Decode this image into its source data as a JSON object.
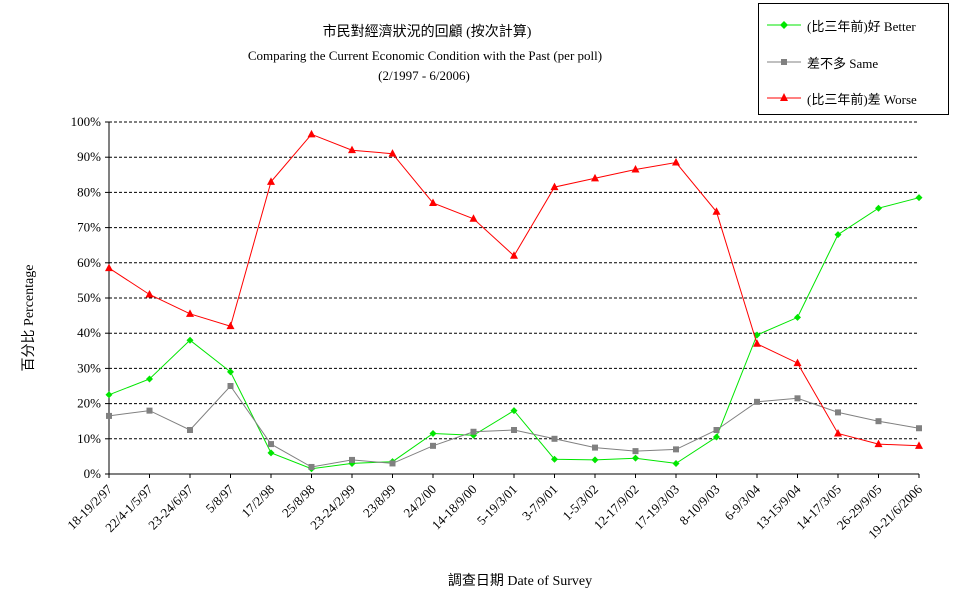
{
  "chart_data": {
    "type": "line",
    "title": "市民對經濟狀況的回顧 (按次計算)",
    "subtitle": "Comparing the Current Economic Condition with the Past  (per poll)",
    "subtitle2": "(2/1997 - 6/2006)",
    "xlabel": "調查日期 Date of Survey",
    "ylabel": "百分比 Percentage",
    "ylim": [
      0,
      100
    ],
    "yticks": [
      "0%",
      "10%",
      "20%",
      "30%",
      "40%",
      "50%",
      "60%",
      "70%",
      "80%",
      "90%",
      "100%"
    ],
    "grid": true,
    "legend_position": "top-right",
    "categories": [
      "18-19/2/97",
      "22/4-1/5/97",
      "23-24/6/97",
      "5/8/97",
      "17/2/98",
      "25/8/98",
      "23-24/2/99",
      "23/8/99",
      "24/2/00",
      "14-18/9/00",
      "5-19/3/01",
      "3-7/9/01",
      "1-5/3/02",
      "12-17/9/02",
      "17-19/3/03",
      "8-10/9/03",
      "6-9/3/04",
      "13-15/9/04",
      "14-17/3/05",
      "26-29/9/05",
      "19-21/6/2006"
    ],
    "series": [
      {
        "name": "(比三年前)好 Better",
        "color": "#00e600",
        "marker": "diamond",
        "values": [
          22.5,
          27,
          38,
          29,
          6,
          1.5,
          3,
          3.5,
          11.5,
          11,
          18,
          4.2,
          4,
          4.5,
          3,
          10.5,
          39.5,
          44.5,
          68,
          75.5,
          78.5
        ]
      },
      {
        "name": "差不多 Same",
        "color": "#808080",
        "marker": "square",
        "values": [
          16.5,
          18,
          12.5,
          25,
          8.5,
          2,
          4,
          3,
          8,
          12,
          12.5,
          10,
          7.5,
          6.5,
          7,
          12.5,
          20.5,
          21.5,
          17.5,
          15,
          13
        ]
      },
      {
        "name": "(比三年前)差 Worse",
        "color": "#ff0000",
        "marker": "triangle",
        "values": [
          58.5,
          51,
          45.5,
          42,
          83,
          96.5,
          92,
          91,
          77,
          72.5,
          62,
          81.5,
          84,
          86.5,
          88.5,
          74.5,
          37,
          31.5,
          11.5,
          8.5,
          8
        ]
      }
    ]
  }
}
